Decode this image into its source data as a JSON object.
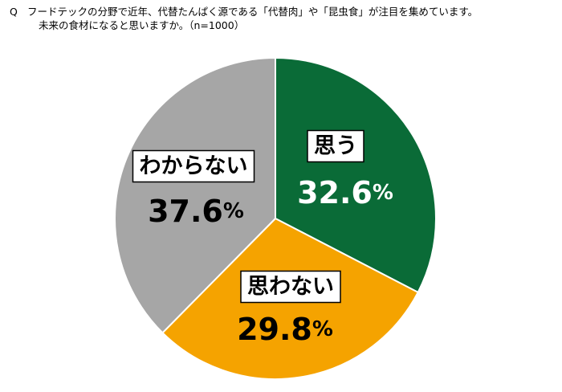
{
  "question": {
    "marker": "Q",
    "line1": "フードテックの分野で近年、代替たんぱく源である「代替肉」や「昆虫食」が注目を集めています。",
    "line2": "未来の食材になると思いますか。（n=1000）"
  },
  "chart_data": {
    "type": "pie",
    "start_angle_deg": 0,
    "direction": "clockwise",
    "slices": [
      {
        "label": "思う",
        "value": 32.6,
        "display": "32.6",
        "unit": "%",
        "color": "#0a6b37",
        "value_text_color": "#ffffff"
      },
      {
        "label": "思わない",
        "value": 29.8,
        "display": "29.8",
        "unit": "%",
        "color": "#f5a300",
        "value_text_color": "#000000"
      },
      {
        "label": "わからない",
        "value": 37.6,
        "display": "37.6",
        "unit": "%",
        "color": "#a6a6a6",
        "value_text_color": "#000000"
      }
    ]
  }
}
